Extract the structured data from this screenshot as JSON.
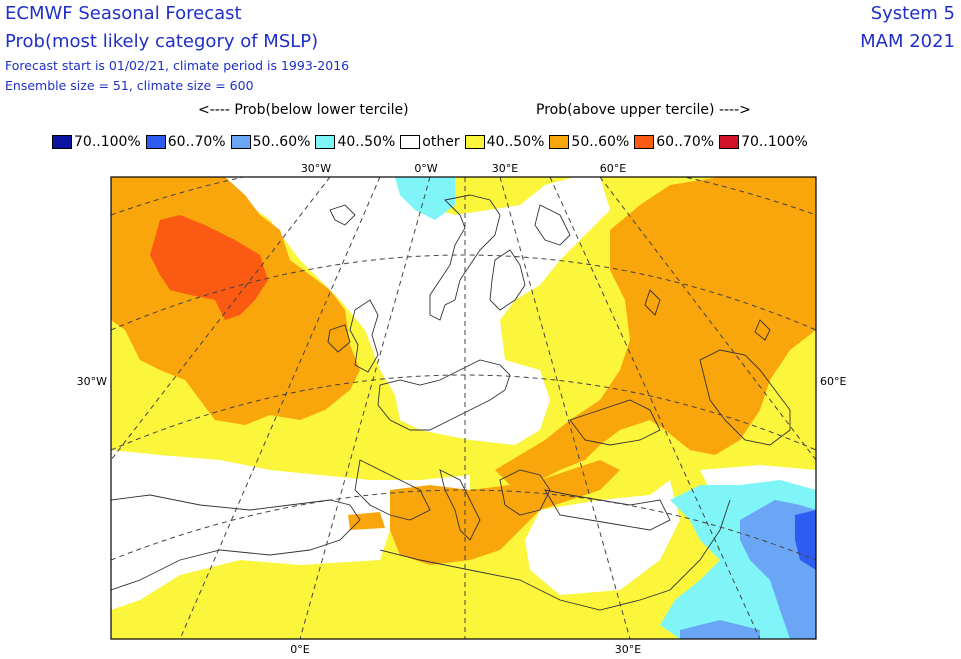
{
  "title": {
    "line1": "ECMWF Seasonal Forecast",
    "line2": "Prob(most likely category of MSLP)",
    "line3": "Forecast start is 01/02/21, climate period is 1993-2016",
    "line4": "Ensemble size = 51, climate size = 600",
    "system": "System 5",
    "season": "MAM 2021"
  },
  "legend": {
    "below_header": "<---- Prob(below lower tercile)",
    "above_header": "Prob(above upper tercile) ---->",
    "items": [
      {
        "label": "70..100%",
        "color": "#0a14a0"
      },
      {
        "label": "60..70%",
        "color": "#2f5cf0"
      },
      {
        "label": "50..60%",
        "color": "#6aa6f5"
      },
      {
        "label": "40..50%",
        "color": "#7ff5f8"
      },
      {
        "label": "other",
        "color": "#ffffff"
      },
      {
        "label": "40..50%",
        "color": "#fbf53c"
      },
      {
        "label": "50..60%",
        "color": "#f9a50c"
      },
      {
        "label": "60..70%",
        "color": "#fa5a12"
      },
      {
        "label": "70..100%",
        "color": "#d2142a"
      }
    ]
  },
  "map": {
    "top_labels": [
      "30°W",
      "0°W",
      "30°E",
      "60°E"
    ],
    "bottom_labels": [
      "0°E",
      "30°E"
    ],
    "left_label": "30°W",
    "right_label": "60°E",
    "colors": {
      "yellow": "#fbf53c",
      "orange": "#f9a50c",
      "red": "#fa5a12",
      "cyan": "#7ff5f8",
      "lightblue": "#6aa6f5",
      "blue": "#2f5cf0",
      "darkblue": "#0a14a0"
    }
  }
}
